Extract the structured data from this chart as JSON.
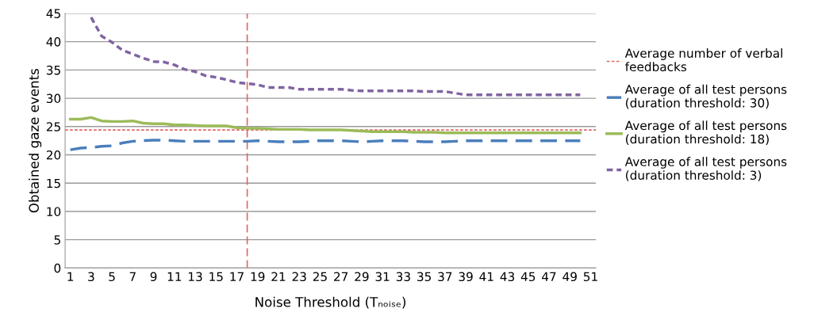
{
  "chart_data": {
    "type": "line",
    "xlabel": "Noise Threshold (Tₙₒᵢₛₑ)",
    "ylabel": "Obtained gaze events",
    "x": [
      1,
      2,
      3,
      4,
      5,
      6,
      7,
      8,
      9,
      10,
      11,
      12,
      13,
      14,
      15,
      16,
      17,
      18,
      19,
      20,
      21,
      22,
      23,
      24,
      25,
      26,
      27,
      28,
      29,
      30,
      31,
      32,
      33,
      34,
      35,
      36,
      37,
      38,
      39,
      40,
      41,
      42,
      43,
      44,
      45,
      46,
      47,
      48,
      49,
      50
    ],
    "xlim": [
      0.5,
      51.5
    ],
    "xticks": [
      1,
      3,
      5,
      7,
      9,
      11,
      13,
      15,
      17,
      19,
      21,
      23,
      25,
      27,
      29,
      31,
      33,
      35,
      37,
      39,
      41,
      43,
      45,
      47,
      49,
      51
    ],
    "ylim": [
      0,
      45
    ],
    "yticks": [
      0,
      5,
      10,
      15,
      20,
      25,
      30,
      35,
      40,
      45
    ],
    "grid": "y",
    "legend": "right",
    "marker": "none",
    "series": [
      {
        "name": "Average of all test persons (duration threshold: 30)",
        "color": "#4a7ebb",
        "line_style": "dashed",
        "values": [
          20.9,
          21.2,
          21.3,
          21.5,
          21.6,
          22.1,
          22.4,
          22.5,
          22.6,
          22.6,
          22.5,
          22.4,
          22.4,
          22.4,
          22.4,
          22.4,
          22.4,
          22.4,
          22.5,
          22.4,
          22.3,
          22.3,
          22.3,
          22.4,
          22.5,
          22.5,
          22.5,
          22.4,
          22.3,
          22.4,
          22.5,
          22.5,
          22.5,
          22.4,
          22.3,
          22.3,
          22.3,
          22.4,
          22.5,
          22.5,
          22.5,
          22.5,
          22.5,
          22.5,
          22.5,
          22.5,
          22.5,
          22.5,
          22.5,
          22.5
        ]
      },
      {
        "name": "Average of all test persons (duration threshold: 18)",
        "color": "#9bbb59",
        "line_style": "solid",
        "values": [
          26.3,
          26.3,
          26.6,
          26.0,
          25.9,
          25.9,
          26.0,
          25.6,
          25.5,
          25.5,
          25.3,
          25.3,
          25.2,
          25.1,
          25.1,
          25.1,
          24.8,
          24.7,
          24.7,
          24.6,
          24.5,
          24.5,
          24.5,
          24.4,
          24.4,
          24.4,
          24.4,
          24.3,
          24.2,
          24.1,
          24.1,
          24.1,
          24.1,
          24.0,
          24.0,
          24.0,
          23.9,
          23.9,
          23.9,
          23.9,
          23.9,
          23.9,
          23.9,
          23.9,
          23.9,
          23.9,
          23.9,
          23.9,
          23.9,
          23.9
        ]
      },
      {
        "name": "Average of all test persons (duration threshold: 3)",
        "color": "#8064a2",
        "line_style": "dotted",
        "values": [
          null,
          null,
          44.3,
          41.0,
          39.9,
          38.5,
          37.8,
          37.1,
          36.5,
          36.4,
          35.9,
          35.1,
          34.7,
          34.0,
          33.7,
          33.3,
          32.8,
          32.6,
          32.4,
          31.9,
          31.9,
          31.9,
          31.6,
          31.6,
          31.6,
          31.6,
          31.6,
          31.4,
          31.3,
          31.3,
          31.3,
          31.3,
          31.3,
          31.3,
          31.2,
          31.2,
          31.2,
          30.9,
          30.6,
          30.6,
          30.6,
          30.6,
          30.6,
          30.6,
          30.6,
          30.6,
          30.6,
          30.6,
          30.6,
          30.6
        ]
      }
    ],
    "ref_lines": [
      {
        "axis": "y",
        "value": 24.4,
        "label": "Average number of verbal feedbacks",
        "color": "#e06666",
        "line_style": "dotted"
      },
      {
        "axis": "x",
        "value": 18,
        "color": "#e06666",
        "line_style": "dashed"
      }
    ]
  }
}
